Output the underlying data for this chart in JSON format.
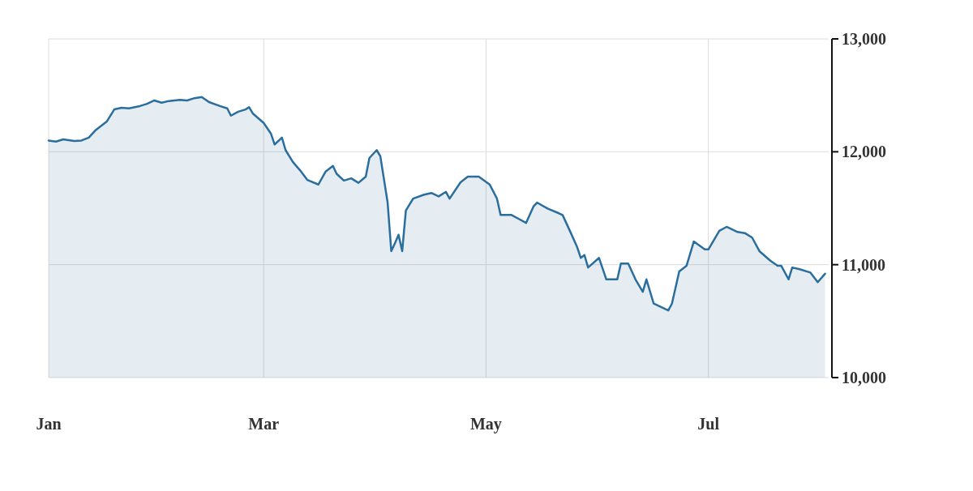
{
  "chart_data": {
    "type": "area",
    "color": "#2a6e9e",
    "x": [
      "--01-01",
      "--01-03",
      "--01-05",
      "--01-08",
      "--01-10",
      "--01-12",
      "--01-14",
      "--01-17",
      "--01-19",
      "--01-21",
      "--01-23",
      "--01-26",
      "--01-28",
      "--01-30",
      "--02-01",
      "--02-03",
      "--02-06",
      "--02-08",
      "--02-10",
      "--02-12",
      "--02-14",
      "--02-17",
      "--02-19",
      "--02-20",
      "--02-22",
      "--02-24",
      "--02-25",
      "--02-26",
      "--03-01",
      "--03-03",
      "--03-04",
      "--03-06",
      "--03-07",
      "--03-09",
      "--03-11",
      "--03-13",
      "--03-16",
      "--03-18",
      "--03-20",
      "--03-21",
      "--03-23",
      "--03-25",
      "--03-27",
      "--03-29",
      "--03-30",
      "--04-01",
      "--04-02",
      "--04-04",
      "--04-05",
      "--04-06",
      "--04-07",
      "--04-08",
      "--04-09",
      "--04-11",
      "--04-14",
      "--04-16",
      "--04-18",
      "--04-20",
      "--04-21",
      "--04-24",
      "--04-26",
      "--04-29",
      "--05-02",
      "--05-04",
      "--05-05",
      "--05-08",
      "--05-10",
      "--05-12",
      "--05-14",
      "--05-15",
      "--05-18",
      "--05-21",
      "--05-22",
      "--05-24",
      "--05-26",
      "--05-27",
      "--05-28",
      "--05-29",
      "--06-01",
      "--06-03",
      "--06-06",
      "--06-07",
      "--06-09",
      "--06-11",
      "--06-13",
      "--06-14",
      "--06-16",
      "--06-20",
      "--06-21",
      "--06-23",
      "--06-25",
      "--06-27",
      "--06-30",
      "--07-01",
      "--07-04",
      "--07-06",
      "--07-09",
      "--07-11",
      "--07-13",
      "--07-15",
      "--07-18",
      "--07-20",
      "--07-21",
      "--07-23",
      "--07-24",
      "--07-26",
      "--07-29",
      "--07-31",
      "--08-02"
    ],
    "values": [
      12100,
      12090,
      12110,
      12095,
      12100,
      12125,
      12195,
      12270,
      12375,
      12390,
      12385,
      12405,
      12425,
      12455,
      12435,
      12450,
      12460,
      12455,
      12475,
      12485,
      12440,
      12405,
      12385,
      12320,
      12355,
      12375,
      12395,
      12340,
      12255,
      12160,
      12065,
      12125,
      12015,
      11910,
      11835,
      11750,
      11710,
      11825,
      11875,
      11805,
      11745,
      11765,
      11725,
      11780,
      11945,
      12015,
      11960,
      11550,
      11120,
      11190,
      11265,
      11120,
      11480,
      11585,
      11620,
      11635,
      11605,
      11645,
      11585,
      11730,
      11780,
      11780,
      11710,
      11585,
      11440,
      11440,
      11405,
      11370,
      11515,
      11550,
      11495,
      11455,
      11440,
      11300,
      11155,
      11060,
      11085,
      10975,
      11060,
      10870,
      10870,
      11010,
      11010,
      10870,
      10760,
      10870,
      10655,
      10595,
      10655,
      10940,
      10990,
      11205,
      11135,
      11135,
      11300,
      11335,
      11290,
      11280,
      11240,
      11120,
      11035,
      10990,
      10990,
      10870,
      10975,
      10960,
      10930,
      10845,
      10920
    ],
    "xlim": [
      "--01-01",
      "--08-03"
    ],
    "xticks": [
      {
        "value": "--01-01",
        "label": "Jan"
      },
      {
        "value": "--03-01",
        "label": "Mar"
      },
      {
        "value": "--05-01",
        "label": "May"
      },
      {
        "value": "--07-01",
        "label": "Jul"
      }
    ],
    "ylim": [
      10000,
      13000
    ],
    "yticks": [
      {
        "value": 10000,
        "label": "10,000"
      },
      {
        "value": 11000,
        "label": "11,000"
      },
      {
        "value": 12000,
        "label": "12,000"
      },
      {
        "value": 13000,
        "label": "13,000"
      }
    ],
    "grid": true
  }
}
